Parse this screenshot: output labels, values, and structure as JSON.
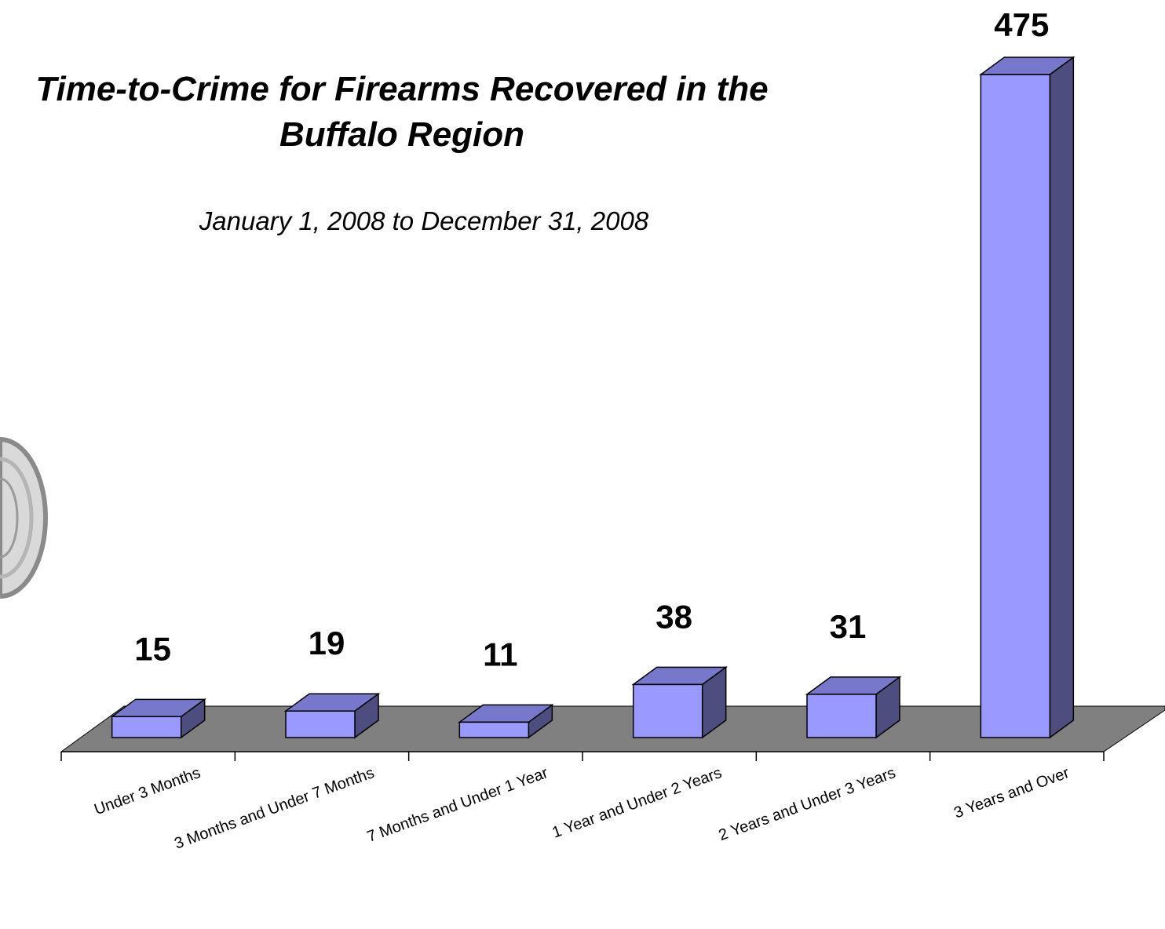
{
  "chart_data": {
    "type": "bar",
    "title_lines": [
      "Time-to-Crime for Firearms Recovered in the",
      "Buffalo Region"
    ],
    "subtitle": "January 1, 2008 to December 31, 2008",
    "categories": [
      "Under 3 Months",
      "3 Months and Under 7 Months",
      "7 Months and Under 1 Year",
      "1 Year and Under 2 Years",
      "2 Years and Under 3 Years",
      "3 Years and Over"
    ],
    "values": [
      15,
      19,
      11,
      38,
      31,
      475
    ],
    "ylim": [
      0,
      475
    ],
    "grid": false,
    "legend": "none",
    "style": "3d-column",
    "colors": {
      "bar_front": "#9999FF",
      "bar_top": "#7777CC",
      "bar_side": "#4D4D80",
      "floor": "#808080",
      "axis": "#000000"
    }
  },
  "decorations": {
    "left_edge_emblem": "partial-seal"
  }
}
